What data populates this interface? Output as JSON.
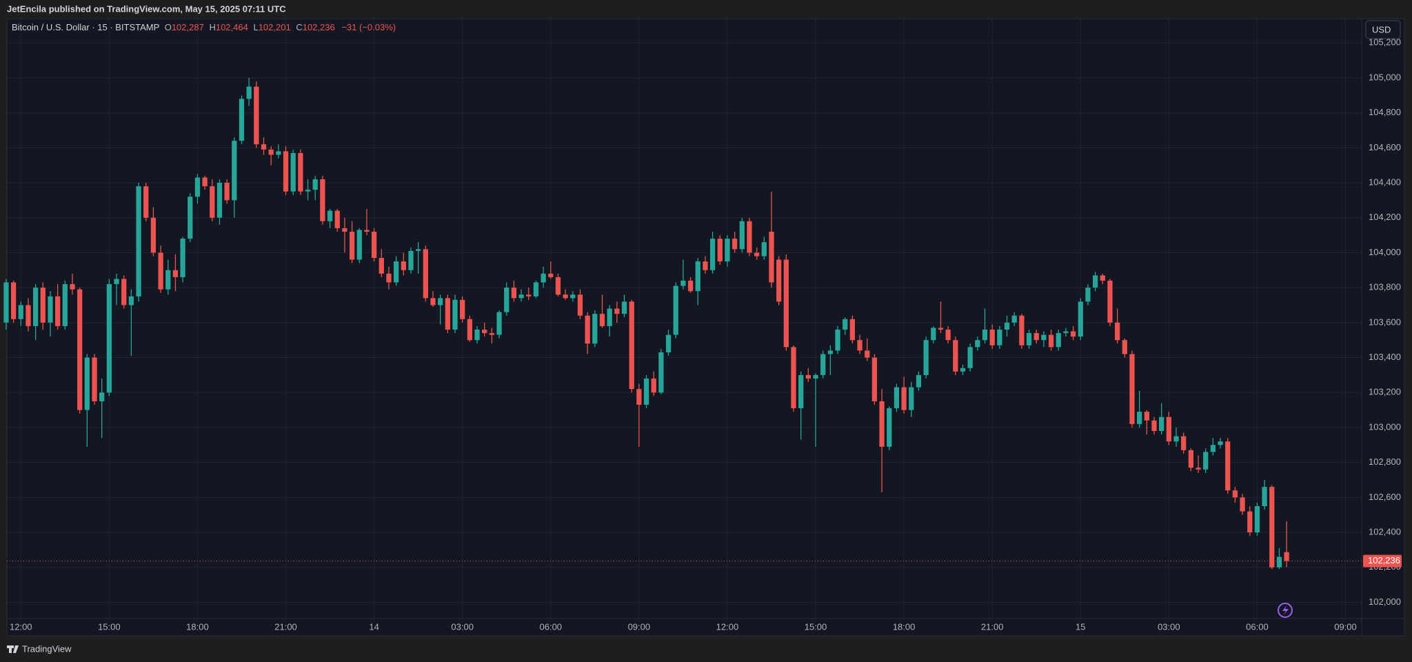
{
  "top_bar": {
    "text": "JetEncila published on TradingView.com, May 15, 2025 07:11 UTC"
  },
  "bottom_bar": {
    "brand": "TradingView"
  },
  "currency_button": "USD",
  "header": {
    "symbol": "Bitcoin / U.S. Dollar · 15 · BITSTAMP",
    "o_label": "O",
    "o_value": "102,287",
    "h_label": "H",
    "h_value": "102,464",
    "l_label": "L",
    "l_value": "102,201",
    "c_label": "C",
    "c_value": "102,236",
    "change": "−31 (−0.03%)"
  },
  "chart_data": {
    "type": "candlestick",
    "up_color": "#26a69a",
    "down_color": "#ef5350",
    "grid": true,
    "xlim": [
      0.1,
      184.2
    ],
    "ylim": [
      101907,
      105335
    ],
    "xticks": [
      {
        "value": 2,
        "label": "12:00"
      },
      {
        "value": 14,
        "label": "15:00"
      },
      {
        "value": 26,
        "label": "18:00"
      },
      {
        "value": 38,
        "label": "21:00"
      },
      {
        "value": 50,
        "label": "14"
      },
      {
        "value": 62,
        "label": "03:00"
      },
      {
        "value": 74,
        "label": "06:00"
      },
      {
        "value": 86,
        "label": "09:00"
      },
      {
        "value": 98,
        "label": "12:00"
      },
      {
        "value": 110,
        "label": "15:00"
      },
      {
        "value": 122,
        "label": "18:00"
      },
      {
        "value": 134,
        "label": "21:00"
      },
      {
        "value": 146,
        "label": "15"
      },
      {
        "value": 158,
        "label": "03:00"
      },
      {
        "value": 170,
        "label": "06:00"
      },
      {
        "value": 182,
        "label": "09:00"
      }
    ],
    "yticks": [
      {
        "value": 102000,
        "label": "102,000"
      },
      {
        "value": 102200,
        "label": "102,200"
      },
      {
        "value": 102400,
        "label": "102,400"
      },
      {
        "value": 102600,
        "label": "102,600"
      },
      {
        "value": 102800,
        "label": "102,800"
      },
      {
        "value": 103000,
        "label": "103,000"
      },
      {
        "value": 103200,
        "label": "103,200"
      },
      {
        "value": 103400,
        "label": "103,400"
      },
      {
        "value": 103600,
        "label": "103,600"
      },
      {
        "value": 103800,
        "label": "103,800"
      },
      {
        "value": 104000,
        "label": "104,000"
      },
      {
        "value": 104200,
        "label": "104,200"
      },
      {
        "value": 104400,
        "label": "104,400"
      },
      {
        "value": 104600,
        "label": "104,600"
      },
      {
        "value": 104800,
        "label": "104,800"
      },
      {
        "value": 105000,
        "label": "105,000"
      },
      {
        "value": 105200,
        "label": "105,200"
      }
    ],
    "last_price": 102236,
    "last_price_label": "102,236",
    "open": [
      103600,
      103830,
      103620,
      103700,
      103580,
      103800,
      103600,
      103750,
      103580,
      103820,
      103790,
      103100,
      103400,
      103150,
      103200,
      103820,
      103850,
      103700,
      103750,
      104380,
      104200,
      104000,
      103790,
      103900,
      103860,
      104080,
      104320,
      104430,
      104380,
      104200,
      104400,
      104300,
      104640,
      104880,
      104950,
      104620,
      104590,
      104560,
      104580,
      104350,
      104570,
      104350,
      104360,
      104420,
      104180,
      104240,
      104140,
      104120,
      103960,
      104130,
      104120,
      103970,
      103880,
      103830,
      103950,
      103900,
      104010,
      104020,
      103740,
      103700,
      103740,
      103560,
      103730,
      103620,
      103500,
      103560,
      103540,
      103530,
      103660,
      103800,
      103740,
      103760,
      103750,
      103830,
      103880,
      103860,
      103760,
      103740,
      103760,
      103640,
      103480,
      103650,
      103580,
      103680,
      103650,
      103720,
      103220,
      103130,
      103280,
      103200,
      103430,
      103530,
      103810,
      103840,
      103780,
      103950,
      103900,
      104080,
      103950,
      104080,
      104020,
      104180,
      104000,
      103980,
      104120,
      103960,
      103960,
      103460,
      103110,
      103300,
      103280,
      103300,
      103420,
      103440,
      103560,
      103620,
      103500,
      103440,
      103400,
      103150,
      102890,
      103110,
      103230,
      103100,
      103230,
      103300,
      103500,
      103570,
      103560,
      103500,
      103320,
      103340,
      103460,
      103500,
      103560,
      103470,
      103560,
      103600,
      103640,
      103470,
      103540,
      103500,
      103530,
      103460,
      103540,
      103550,
      103520,
      103720,
      103800,
      103870,
      103840,
      103600,
      103500,
      103420,
      103020,
      103090,
      103040,
      102980,
      103060,
      102920,
      102950,
      102870,
      102770,
      102760,
      102860,
      102900,
      102920,
      102640,
      102600,
      102520,
      102400,
      102550,
      102660,
      102200,
      102287
    ],
    "high": [
      103850,
      103840,
      103720,
      103740,
      103820,
      103830,
      103780,
      103820,
      103840,
      103880,
      103800,
      103420,
      103420,
      103280,
      103850,
      103880,
      103870,
      103790,
      104400,
      104400,
      104260,
      104040,
      103960,
      103990,
      104090,
      104340,
      104450,
      104440,
      104420,
      104420,
      104420,
      104660,
      104900,
      105000,
      104980,
      104660,
      104610,
      104620,
      104610,
      104590,
      104590,
      104420,
      104440,
      104440,
      104250,
      104250,
      104200,
      104180,
      104140,
      104250,
      104140,
      104020,
      103920,
      103980,
      104000,
      104030,
      104060,
      104040,
      103780,
      103760,
      103760,
      103760,
      103750,
      103640,
      103580,
      103600,
      103570,
      103670,
      103830,
      103840,
      103790,
      103800,
      103840,
      103920,
      103950,
      103880,
      103790,
      103780,
      103790,
      103660,
      103670,
      103760,
      103700,
      103720,
      103760,
      103730,
      103250,
      103300,
      103320,
      103450,
      103560,
      103830,
      103960,
      103860,
      103970,
      103980,
      104120,
      104100,
      104100,
      104120,
      104200,
      104200,
      104030,
      104090,
      104350,
      103980,
      103990,
      103470,
      103320,
      103340,
      103310,
      103440,
      103470,
      103580,
      103630,
      103640,
      103530,
      103510,
      103420,
      103220,
      103120,
      103250,
      103290,
      103260,
      103320,
      103520,
      103580,
      103720,
      103580,
      103520,
      103360,
      103480,
      103520,
      103680,
      103590,
      103580,
      103640,
      103660,
      103650,
      103560,
      103560,
      103550,
      103560,
      103560,
      103570,
      103580,
      103740,
      103820,
      103890,
      103880,
      103850,
      103680,
      103510,
      103440,
      103210,
      103100,
      103060,
      103140,
      103090,
      103000,
      102970,
      102880,
      102840,
      102880,
      102940,
      102940,
      102940,
      102660,
      102620,
      102550,
      102570,
      102700,
      102670,
      102310,
      102464
    ],
    "low": [
      103560,
      103600,
      103580,
      103550,
      103500,
      103560,
      103520,
      103560,
      103560,
      103760,
      103080,
      102890,
      103130,
      102940,
      103180,
      103700,
      103680,
      103410,
      103720,
      104180,
      103980,
      103770,
      103760,
      103780,
      103830,
      104060,
      104280,
      104360,
      104180,
      104160,
      104280,
      104200,
      104620,
      104840,
      104600,
      104560,
      104500,
      104540,
      104330,
      104330,
      104330,
      104300,
      104300,
      104160,
      104140,
      104120,
      104000,
      103940,
      103940,
      104100,
      103950,
      103860,
      103790,
      103810,
      103870,
      103880,
      103880,
      103720,
      103690,
      103590,
      103540,
      103540,
      103600,
      103490,
      103480,
      103520,
      103480,
      103510,
      103640,
      103720,
      103720,
      103730,
      103740,
      103800,
      103850,
      103750,
      103730,
      103720,
      103620,
      103420,
      103460,
      103570,
      103520,
      103600,
      103630,
      103200,
      102890,
      103110,
      103180,
      103190,
      103410,
      103510,
      103790,
      103770,
      103700,
      103880,
      103880,
      103930,
      103920,
      104000,
      104000,
      103980,
      103960,
      103960,
      103800,
      103700,
      103440,
      103090,
      102930,
      103260,
      102890,
      103280,
      103300,
      103420,
      103530,
      103480,
      103420,
      103380,
      103130,
      102630,
      102870,
      103090,
      103080,
      103060,
      103210,
      103280,
      103480,
      103540,
      103480,
      103300,
      103300,
      103320,
      103440,
      103480,
      103450,
      103450,
      103520,
      103580,
      103450,
      103450,
      103480,
      103460,
      103440,
      103440,
      103520,
      103500,
      103500,
      103700,
      103780,
      103820,
      103580,
      103480,
      103400,
      103000,
      103000,
      102960,
      102960,
      102960,
      102900,
      102890,
      102850,
      102750,
      102740,
      102740,
      102840,
      102880,
      102620,
      102570,
      102500,
      102380,
      102380,
      102530,
      102190,
      102190,
      102201
    ],
    "close": [
      103830,
      103620,
      103700,
      103580,
      103800,
      103600,
      103750,
      103580,
      103820,
      103790,
      103100,
      103400,
      103150,
      103200,
      103820,
      103850,
      103700,
      103750,
      104380,
      104200,
      104000,
      103790,
      103900,
      103860,
      104080,
      104320,
      104430,
      104380,
      104200,
      104400,
      104300,
      104640,
      104880,
      104950,
      104620,
      104590,
      104560,
      104580,
      104350,
      104570,
      104350,
      104360,
      104420,
      104180,
      104240,
      104140,
      104120,
      103960,
      104130,
      104120,
      103970,
      103880,
      103830,
      103950,
      103900,
      104010,
      104020,
      103740,
      103700,
      103740,
      103560,
      103730,
      103620,
      103500,
      103560,
      103540,
      103530,
      103660,
      103800,
      103740,
      103760,
      103750,
      103830,
      103880,
      103860,
      103760,
      103740,
      103760,
      103640,
      103480,
      103650,
      103580,
      103680,
      103650,
      103720,
      103220,
      103130,
      103280,
      103200,
      103430,
      103530,
      103810,
      103840,
      103780,
      103950,
      103900,
      104080,
      103950,
      104080,
      104020,
      104180,
      104000,
      103980,
      104060,
      103830,
      103720,
      103460,
      103110,
      103300,
      103280,
      103300,
      103420,
      103440,
      103560,
      103620,
      103500,
      103440,
      103400,
      103150,
      102890,
      103110,
      103230,
      103100,
      103230,
      103300,
      103500,
      103570,
      103560,
      103500,
      103320,
      103340,
      103460,
      103500,
      103560,
      103470,
      103560,
      103600,
      103640,
      103470,
      103540,
      103500,
      103530,
      103460,
      103540,
      103550,
      103520,
      103720,
      103800,
      103870,
      103840,
      103600,
      103500,
      103420,
      103020,
      103090,
      103040,
      102980,
      103060,
      102920,
      102950,
      102870,
      102770,
      102760,
      102860,
      102900,
      102920,
      102640,
      102600,
      102520,
      102400,
      102550,
      102660,
      102200,
      102260,
      102236
    ]
  }
}
